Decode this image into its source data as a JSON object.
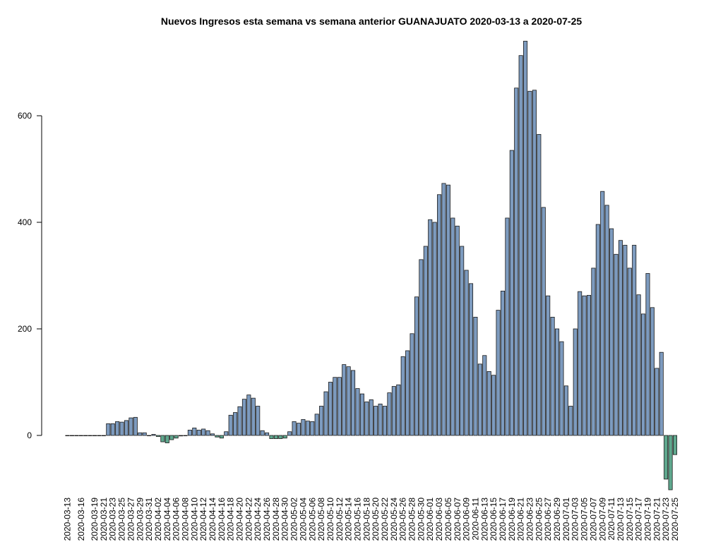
{
  "chart_data": {
    "type": "bar",
    "title": "Nuevos Ingresos esta semana vs semana anterior GUANAJUATO 2020-03-13 a 2020-07-25",
    "xlabel": "",
    "ylabel": "",
    "start_date": "2020-03-13",
    "end_date": "2020-07-25",
    "x_tick_labels": [
      "2020-03-13",
      "2020-03-16",
      "2020-03-19",
      "2020-03-21",
      "2020-03-23",
      "2020-03-25",
      "2020-03-27",
      "2020-03-29",
      "2020-03-31",
      "2020-04-02",
      "2020-04-04",
      "2020-04-06",
      "2020-04-08",
      "2020-04-10",
      "2020-04-12",
      "2020-04-14",
      "2020-04-16",
      "2020-04-18",
      "2020-04-20",
      "2020-04-22",
      "2020-04-24",
      "2020-04-26",
      "2020-04-28",
      "2020-04-30",
      "2020-05-02",
      "2020-05-04",
      "2020-05-06",
      "2020-05-08",
      "2020-05-10",
      "2020-05-12",
      "2020-05-14",
      "2020-05-16",
      "2020-05-18",
      "2020-05-20",
      "2020-05-22",
      "2020-05-24",
      "2020-05-26",
      "2020-05-28",
      "2020-05-30",
      "2020-06-01",
      "2020-06-03",
      "2020-06-05",
      "2020-06-07",
      "2020-06-09",
      "2020-06-11",
      "2020-06-13",
      "2020-06-15",
      "2020-06-17",
      "2020-06-19",
      "2020-06-21",
      "2020-06-23",
      "2020-06-25",
      "2020-06-27",
      "2020-06-29",
      "2020-07-01",
      "2020-07-03",
      "2020-07-05",
      "2020-07-07",
      "2020-07-09",
      "2020-07-11",
      "2020-07-13",
      "2020-07-15",
      "2020-07-17",
      "2020-07-19",
      "2020-07-21",
      "2020-07-23",
      "2020-07-25"
    ],
    "y_ticks": [
      0,
      200,
      400,
      600
    ],
    "ylim": [
      -100,
      740
    ],
    "grid": false,
    "legend": "none",
    "colors": {
      "positive": "#7d9bbf",
      "negative": "#5fa88e",
      "border": "#1a1a1a"
    },
    "values": [
      0,
      0,
      0,
      0,
      0,
      0,
      0,
      0,
      0,
      22,
      22,
      26,
      25,
      28,
      33,
      34,
      5,
      5,
      0,
      2,
      -2,
      -12,
      -14,
      -8,
      -5,
      -1,
      0,
      10,
      14,
      10,
      12,
      9,
      3,
      -3,
      -5,
      7,
      38,
      43,
      54,
      68,
      76,
      70,
      55,
      9,
      5,
      -6,
      -6,
      -6,
      -5,
      7,
      26,
      23,
      30,
      27,
      26,
      40,
      55,
      82,
      100,
      109,
      109,
      133,
      129,
      122,
      88,
      78,
      63,
      67,
      55,
      59,
      55,
      80,
      92,
      95,
      148,
      159,
      191,
      260,
      330,
      355,
      405,
      400,
      452,
      473,
      470,
      408,
      393,
      355,
      310,
      285,
      222,
      134,
      150,
      120,
      113,
      235,
      271,
      408,
      535,
      652,
      713,
      740,
      646,
      648,
      565,
      428,
      262,
      222,
      200,
      176,
      93,
      55,
      200,
      270,
      262,
      263,
      314,
      396,
      458,
      432,
      388,
      340,
      366,
      357,
      314,
      357,
      264,
      228,
      304,
      240,
      126,
      156,
      -82,
      -102,
      -36
    ]
  }
}
